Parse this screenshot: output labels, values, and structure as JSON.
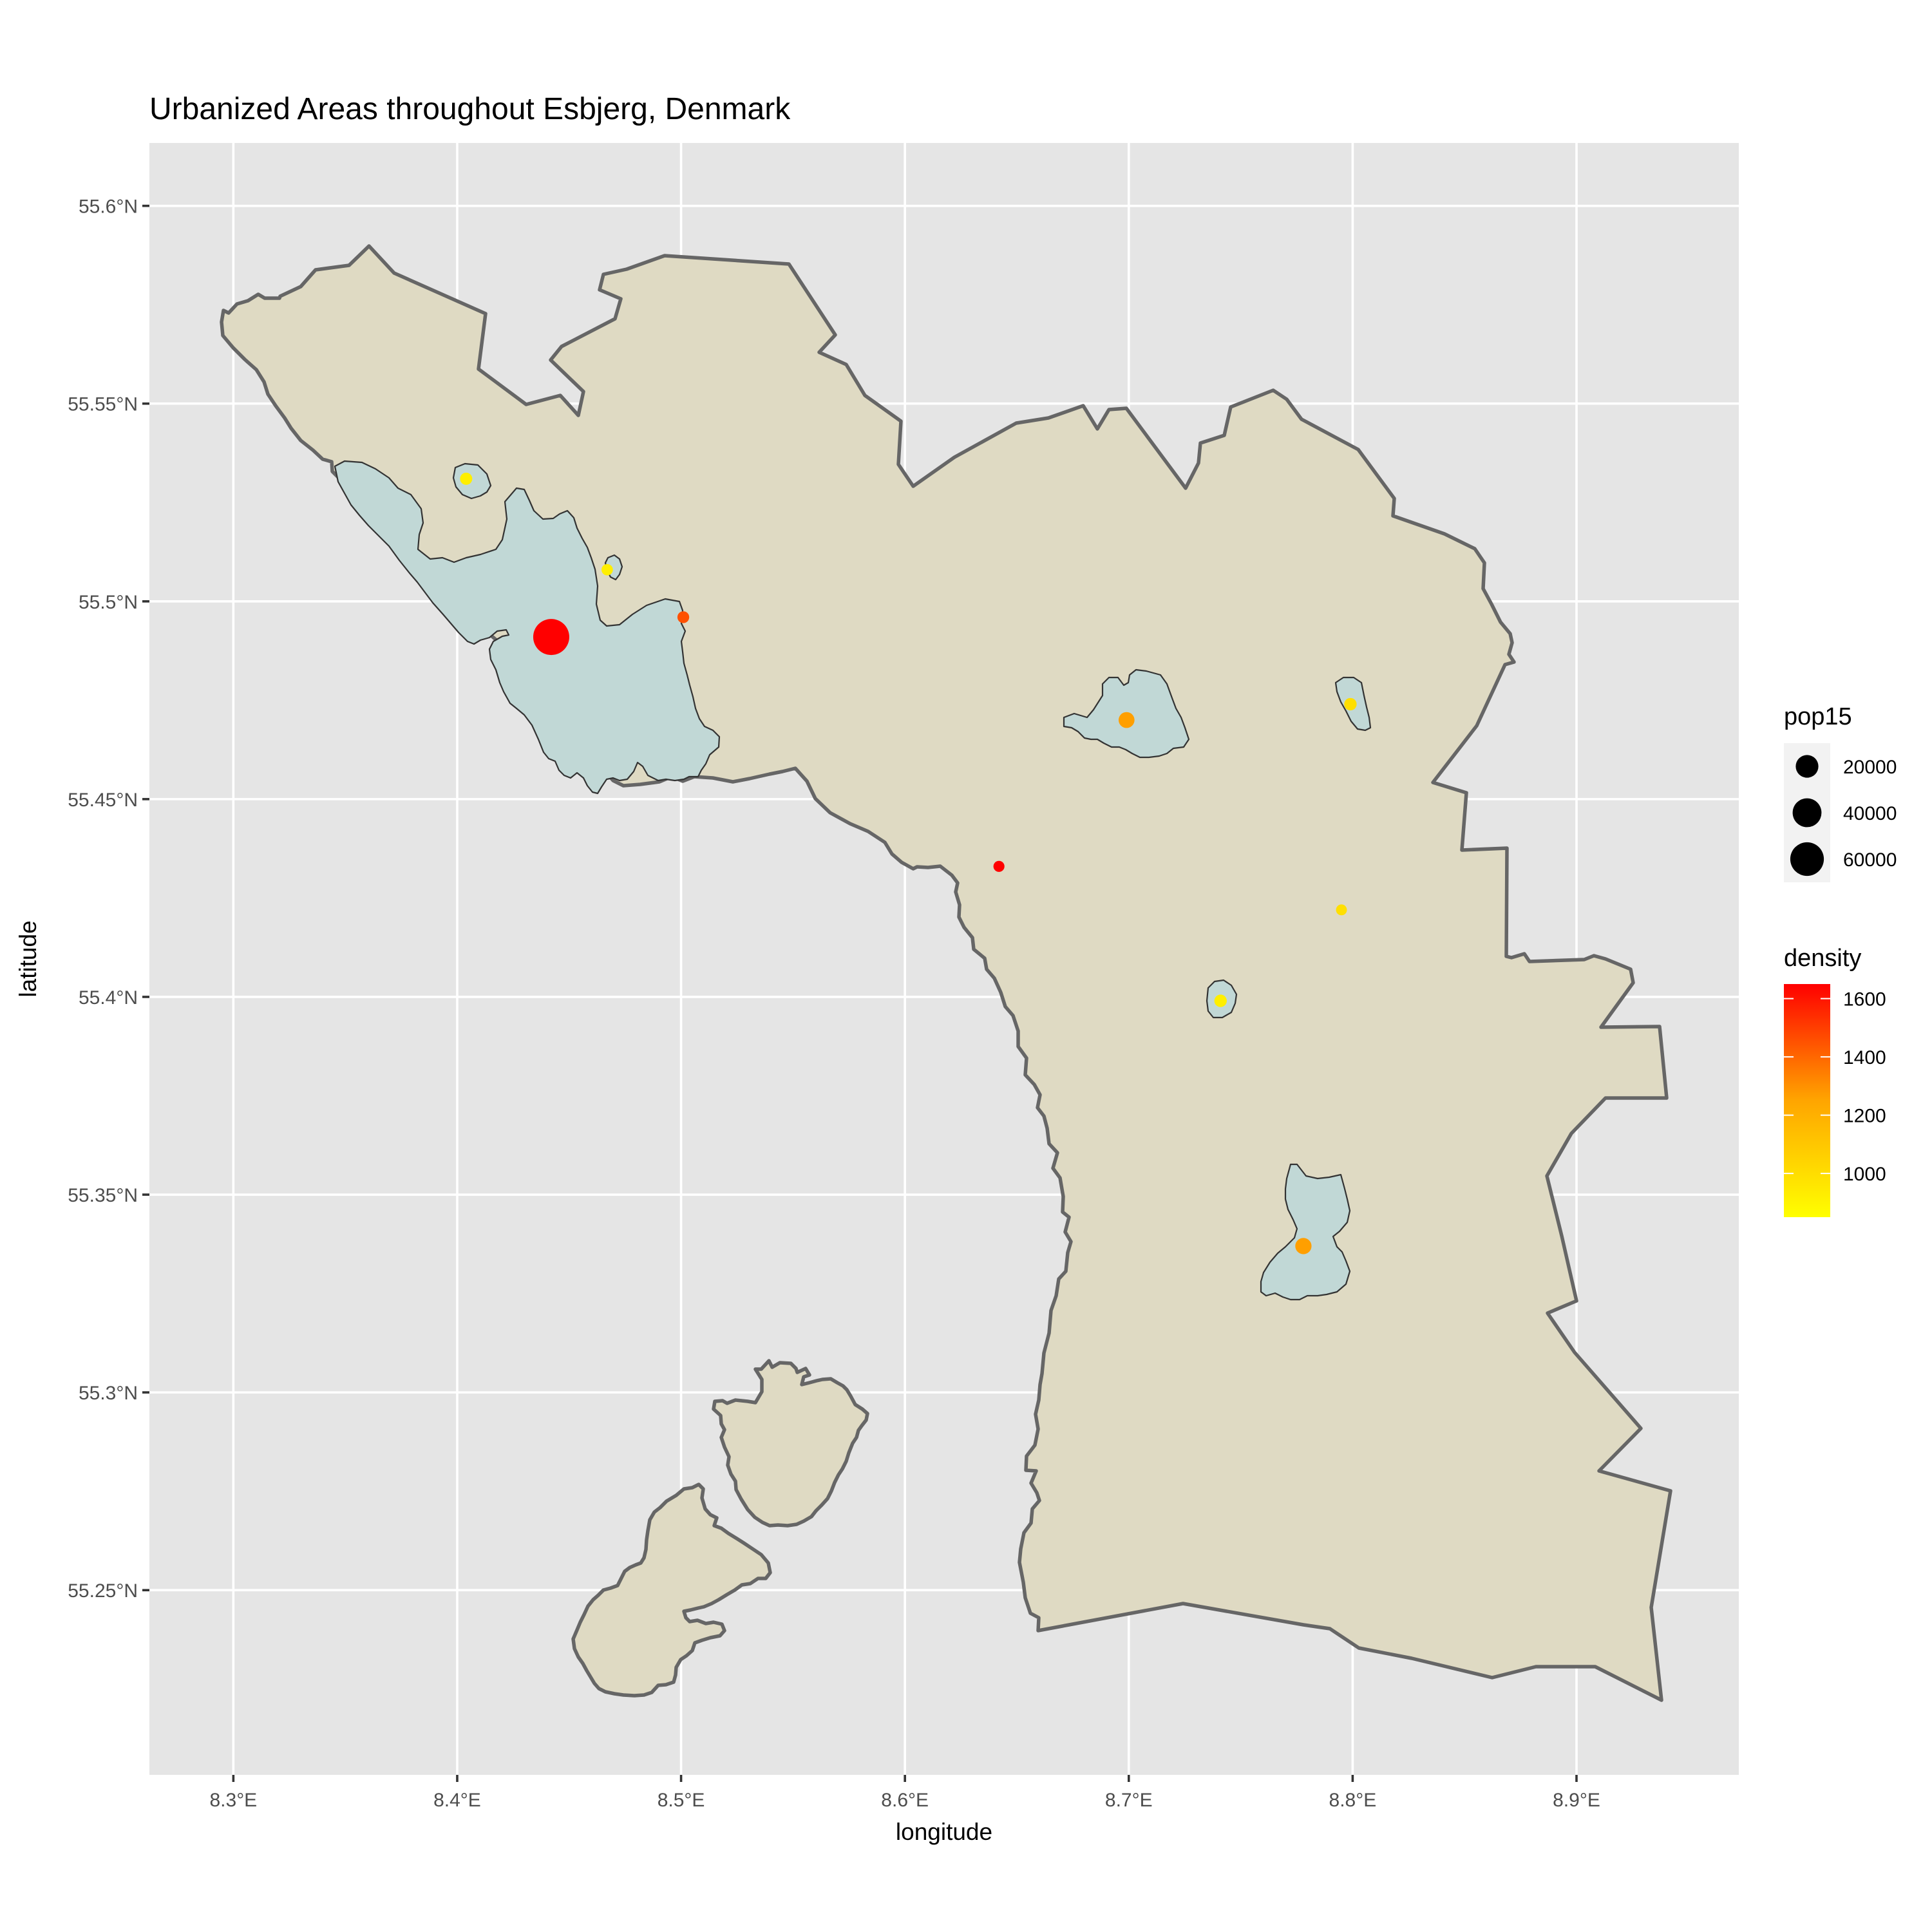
{
  "title": "Urbanized Areas throughout Esbjerg, Denmark",
  "x_axis": {
    "label": "longitude",
    "ticks": [
      {
        "value": 8.3,
        "label": "8.3°E"
      },
      {
        "value": 8.4,
        "label": "8.4°E"
      },
      {
        "value": 8.5,
        "label": "8.5°E"
      },
      {
        "value": 8.6,
        "label": "8.6°E"
      },
      {
        "value": 8.7,
        "label": "8.7°E"
      },
      {
        "value": 8.8,
        "label": "8.8°E"
      },
      {
        "value": 8.9,
        "label": "8.9°E"
      }
    ],
    "range": [
      8.2625,
      8.9725
    ]
  },
  "y_axis": {
    "label": "latitude",
    "ticks": [
      {
        "value": 55.25,
        "label": "55.25°N"
      },
      {
        "value": 55.3,
        "label": "55.3°N"
      },
      {
        "value": 55.35,
        "label": "55.35°N"
      },
      {
        "value": 55.4,
        "label": "55.4°N"
      },
      {
        "value": 55.45,
        "label": "55.45°N"
      },
      {
        "value": 55.5,
        "label": "55.5°N"
      },
      {
        "value": 55.55,
        "label": "55.55°N"
      },
      {
        "value": 55.6,
        "label": "55.6°N"
      }
    ],
    "range": [
      55.2033,
      55.6159
    ]
  },
  "legend_size": {
    "title": "pop15",
    "entries": [
      {
        "label": "20000",
        "value": 20000
      },
      {
        "label": "40000",
        "value": 40000
      },
      {
        "label": "60000",
        "value": 60000
      }
    ]
  },
  "legend_color": {
    "title": "density",
    "labels": [
      {
        "label": "1600",
        "value": 1600
      },
      {
        "label": "1400",
        "value": 1400
      },
      {
        "label": "1200",
        "value": 1200
      },
      {
        "label": "1000",
        "value": 1000
      }
    ],
    "min": 850,
    "max": 1650,
    "low_color": "#ffff00",
    "high_color": "#ff0000"
  },
  "colors": {
    "panel": "#e5e5e5",
    "municipality_fill": "#dfdac3",
    "urban_fill": "#c1d8d6",
    "border": "#666666"
  },
  "chart_data": {
    "type": "scatter",
    "x_variable": "longitude",
    "y_variable": "latitude",
    "size_variable": "pop15",
    "color_variable": "density",
    "points": [
      {
        "lon": 8.442,
        "lat": 55.491,
        "pop15": 72000,
        "density": 1650
      },
      {
        "lon": 8.501,
        "lat": 55.496,
        "pop15": 1500,
        "density": 1400
      },
      {
        "lon": 8.404,
        "lat": 55.531,
        "pop15": 1800,
        "density": 900
      },
      {
        "lon": 8.467,
        "lat": 55.508,
        "pop15": 1200,
        "density": 900
      },
      {
        "lon": 8.699,
        "lat": 55.47,
        "pop15": 6000,
        "density": 1150
      },
      {
        "lon": 8.799,
        "lat": 55.474,
        "pop15": 2000,
        "density": 950
      },
      {
        "lon": 8.642,
        "lat": 55.433,
        "pop15": 1000,
        "density": 1650
      },
      {
        "lon": 8.795,
        "lat": 55.422,
        "pop15": 900,
        "density": 950
      },
      {
        "lon": 8.741,
        "lat": 55.399,
        "pop15": 2000,
        "density": 900
      },
      {
        "lon": 8.778,
        "lat": 55.337,
        "pop15": 6500,
        "density": 1150
      }
    ]
  }
}
